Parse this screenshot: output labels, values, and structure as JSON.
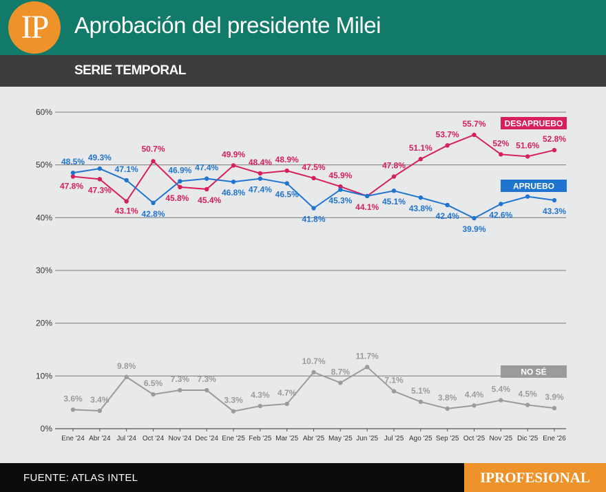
{
  "header": {
    "logo_text": "IP",
    "title": "Aprobación del presidente Milei",
    "subtitle": "SERIE TEMPORAL"
  },
  "footer": {
    "source": "FUENTE: ATLAS INTEL",
    "brand": "IPROFESIONAL"
  },
  "colors": {
    "header_bg": "#117a68",
    "accent": "#f0922a",
    "desaprueba": "#d61f5b",
    "aprueba": "#1f74cf",
    "nose": "#9b9b9b"
  },
  "chart_data": {
    "type": "line",
    "ylim": [
      0,
      60
    ],
    "yticks": [
      "0%",
      "10%",
      "20%",
      "30%",
      "40%",
      "50%",
      "60%"
    ],
    "grid": true,
    "categories": [
      "Ene '24",
      "Abr '24",
      "Jul '24",
      "Oct '24",
      "Nov '24",
      "Dec '24",
      "Ene '25",
      "Feb '25",
      "Mar '25",
      "Abr '25",
      "May '25",
      "Jun '25",
      "Jul '25",
      "Ago '25",
      "Sep '25",
      "Oct '25",
      "Nov '25",
      "Dic '25",
      "Ene '26"
    ],
    "series": [
      {
        "name": "DESAPRUEBO",
        "color": "#d61f5b",
        "values": [
          47.8,
          47.3,
          43.1,
          50.7,
          45.8,
          45.4,
          49.9,
          48.4,
          48.9,
          47.5,
          45.9,
          44.1,
          47.8,
          51.1,
          53.7,
          55.7,
          52,
          51.6,
          52.8
        ],
        "labels": [
          "47.8%",
          "47.3%",
          "43.1%",
          "50.7%",
          "45.8%",
          "45.4%",
          "49.9%",
          "48.4%",
          "48.9%",
          "47.5%",
          "45.9%",
          "44.1%",
          "47.8%",
          "51.1%",
          "53.7%",
          "55.7%",
          "52%",
          "51.6%",
          "52.8%"
        ]
      },
      {
        "name": "APRUEBO",
        "color": "#1f74cf",
        "values": [
          48.5,
          49.3,
          47.1,
          42.8,
          46.9,
          47.4,
          46.8,
          47.4,
          46.5,
          41.8,
          45.3,
          44.1,
          45.1,
          43.8,
          42.4,
          39.9,
          42.6,
          44,
          43.3
        ],
        "labels": [
          "48.5%",
          "49.3%",
          "47.1%",
          "42.8%",
          "46.9%",
          "47.4%",
          "46.8%",
          "47.4%",
          "46.5%",
          "41.8%",
          "45.3%",
          "",
          "45.1%",
          "43.8%",
          "42.4%",
          "39.9%",
          "42.6%",
          "44%",
          "43.3%"
        ]
      },
      {
        "name": "NO SÉ",
        "color": "#9b9b9b",
        "values": [
          3.6,
          3.4,
          9.8,
          6.5,
          7.3,
          7.3,
          3.3,
          4.3,
          4.7,
          10.7,
          8.7,
          11.7,
          7.1,
          5.1,
          3.8,
          4.4,
          5.4,
          4.5,
          3.9
        ],
        "labels": [
          "3.6%",
          "3.4%",
          "9.8%",
          "6.5%",
          "7.3%",
          "7.3%",
          "3.3%",
          "4.3%",
          "4.7%",
          "10.7%",
          "8.7%",
          "11.7%",
          "7.1%",
          "5.1%",
          "3.8%",
          "4.4%",
          "5.4%",
          "4.5%",
          "3.9%"
        ]
      }
    ]
  }
}
